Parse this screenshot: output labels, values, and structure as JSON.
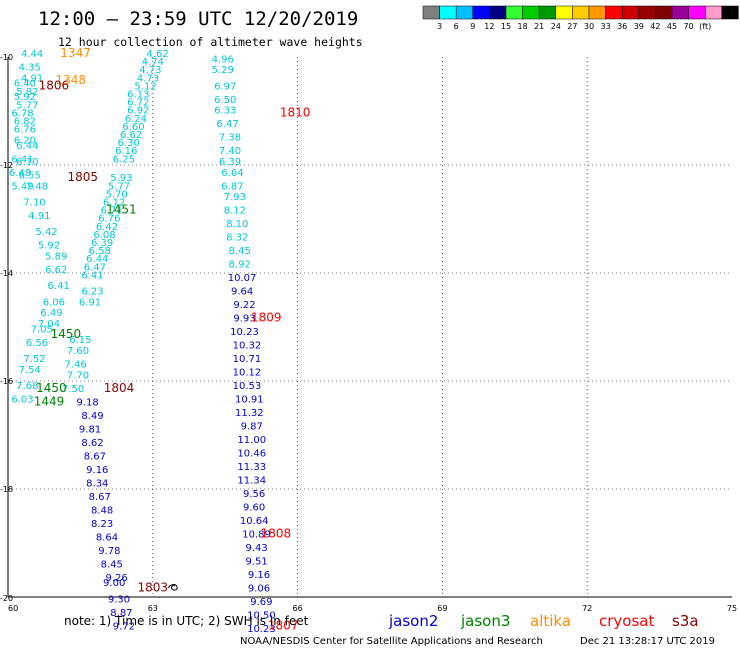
{
  "header": {
    "title": "12:00 – 23:59 UTC 12/20/2019",
    "subtitle": "12 hour collection of altimeter wave heights"
  },
  "legend": {
    "colors": [
      "#808080",
      "#00ffff",
      "#00bfff",
      "#0000ff",
      "#000080",
      "#33ff33",
      "#00cc00",
      "#009900",
      "#ffff00",
      "#ffcc00",
      "#ff9900",
      "#ff0000",
      "#cc0000",
      "#990000",
      "#7f0000",
      "#990099",
      "#ff00ff",
      "#ff99cc",
      "#000000"
    ],
    "labels": [
      "3",
      "6",
      "9",
      "12",
      "15",
      "18",
      "21",
      "24",
      "27",
      "30",
      "33",
      "36",
      "39",
      "42",
      "45",
      "70",
      "(ft)"
    ]
  },
  "satellite_colors": {
    "jason2": "#0000cd",
    "jason3": "#008000",
    "altika": "#ff8c00",
    "cryosat": "#ff0000",
    "s3a": "#8b0000",
    "cyan": "#00c8d8"
  },
  "footer": {
    "note": "note: 1) Time is in UTC; 2) SWH is in feet",
    "satellites": [
      "jason2",
      "jason3",
      "altika",
      "cryosat",
      "s3a"
    ],
    "credit": "NOAA/NESDIS Center for Satellite Applications and Research",
    "timestamp": "Dec 21 13:28:17 UTC 2019"
  },
  "chart_data": {
    "type": "scatter",
    "title": "12:00 – 23:59 UTC 12/20/2019",
    "subtitle": "12 hour collection of altimeter wave heights",
    "xlabel": "",
    "ylabel": "",
    "xlim": [
      60,
      75
    ],
    "ylim": [
      -20,
      -10
    ],
    "grid": true,
    "x_ticks": [
      "60",
      "63",
      "66",
      "69",
      "72",
      "75"
    ],
    "y_ticks": [
      "-10",
      "-12",
      "-14",
      "-16",
      "-18",
      "-20"
    ],
    "series": [
      {
        "satellite": "cyan-column",
        "color_key": "cyan",
        "points": [
          {
            "x": 63.1,
            "y": -10.0,
            "v": "4.62"
          },
          {
            "x": 63.0,
            "y": -10.15,
            "v": "4.74"
          },
          {
            "x": 62.95,
            "y": -10.3,
            "v": "4.73"
          },
          {
            "x": 62.9,
            "y": -10.45,
            "v": "4.73"
          },
          {
            "x": 62.85,
            "y": -10.6,
            "v": "5.12"
          },
          {
            "x": 62.7,
            "y": -10.75,
            "v": "6.13"
          },
          {
            "x": 62.7,
            "y": -10.9,
            "v": "6.72"
          },
          {
            "x": 62.7,
            "y": -11.05,
            "v": "6.92"
          },
          {
            "x": 62.65,
            "y": -11.2,
            "v": "6.24"
          },
          {
            "x": 62.6,
            "y": -11.35,
            "v": "6.60"
          },
          {
            "x": 62.55,
            "y": -11.5,
            "v": "6.62"
          },
          {
            "x": 62.5,
            "y": -11.65,
            "v": "6.30"
          },
          {
            "x": 62.45,
            "y": -11.8,
            "v": "6.16"
          },
          {
            "x": 62.4,
            "y": -11.95,
            "v": "6.25"
          },
          {
            "x": 62.35,
            "y": -12.3,
            "v": "5.93"
          },
          {
            "x": 62.3,
            "y": -12.45,
            "v": "5.77"
          },
          {
            "x": 62.25,
            "y": -12.6,
            "v": "5.70"
          },
          {
            "x": 62.2,
            "y": -12.75,
            "v": "6.12"
          },
          {
            "x": 62.15,
            "y": -12.9,
            "v": "6.71"
          },
          {
            "x": 62.1,
            "y": -13.05,
            "v": "6.76"
          },
          {
            "x": 62.05,
            "y": -13.2,
            "v": "6.42"
          },
          {
            "x": 62.0,
            "y": -13.35,
            "v": "6.08"
          },
          {
            "x": 61.95,
            "y": -13.5,
            "v": "6.39"
          },
          {
            "x": 61.9,
            "y": -13.65,
            "v": "6.58"
          },
          {
            "x": 61.85,
            "y": -13.8,
            "v": "6.44"
          },
          {
            "x": 61.8,
            "y": -13.95,
            "v": "6.47"
          },
          {
            "x": 61.75,
            "y": -14.1,
            "v": "6.41"
          },
          {
            "x": 61.75,
            "y": -14.4,
            "v": "6.23"
          },
          {
            "x": 61.7,
            "y": -14.6,
            "v": "6.91"
          },
          {
            "x": 61.5,
            "y": -15.3,
            "v": "6.15"
          },
          {
            "x": 61.45,
            "y": -15.5,
            "v": "7.60"
          },
          {
            "x": 61.4,
            "y": -15.75,
            "v": "7.46"
          },
          {
            "x": 61.45,
            "y": -15.95,
            "v": "7.70"
          },
          {
            "x": 61.35,
            "y": -16.2,
            "v": "7.50"
          },
          {
            "x": 60.5,
            "y": -10.0,
            "v": "4.44"
          },
          {
            "x": 60.45,
            "y": -10.25,
            "v": "4.35"
          },
          {
            "x": 60.5,
            "y": -10.45,
            "v": "4.91"
          },
          {
            "x": 60.35,
            "y": -10.55,
            "v": "6.40"
          },
          {
            "x": 60.4,
            "y": -10.7,
            "v": "5.82"
          },
          {
            "x": 60.35,
            "y": -10.8,
            "v": "5.92"
          },
          {
            "x": 60.4,
            "y": -10.95,
            "v": "5.77"
          },
          {
            "x": 60.3,
            "y": -11.1,
            "v": "6.78"
          },
          {
            "x": 60.35,
            "y": -11.25,
            "v": "6.82"
          },
          {
            "x": 60.35,
            "y": -11.4,
            "v": "6.76"
          },
          {
            "x": 60.35,
            "y": -11.6,
            "v": "6.20"
          },
          {
            "x": 60.4,
            "y": -11.7,
            "v": "6.44"
          },
          {
            "x": 60.3,
            "y": -11.95,
            "v": "6.41"
          },
          {
            "x": 60.4,
            "y": -12.0,
            "v": "6.10"
          },
          {
            "x": 60.25,
            "y": -12.2,
            "v": "6.48"
          },
          {
            "x": 60.45,
            "y": -12.25,
            "v": "6.55"
          },
          {
            "x": 60.3,
            "y": -12.45,
            "v": "5.49"
          },
          {
            "x": 60.6,
            "y": -12.45,
            "v": "7.48"
          },
          {
            "x": 60.55,
            "y": -12.75,
            "v": "7.10"
          },
          {
            "x": 60.65,
            "y": -13.0,
            "v": "4.91"
          },
          {
            "x": 60.8,
            "y": -13.3,
            "v": "5.42"
          },
          {
            "x": 60.85,
            "y": -13.55,
            "v": "5.92"
          },
          {
            "x": 61.0,
            "y": -13.75,
            "v": "5.89"
          },
          {
            "x": 61.0,
            "y": -14.0,
            "v": "6.62"
          },
          {
            "x": 61.05,
            "y": -14.3,
            "v": "6.41"
          },
          {
            "x": 60.95,
            "y": -14.6,
            "v": "6.06"
          },
          {
            "x": 60.9,
            "y": -14.8,
            "v": "6.49"
          },
          {
            "x": 60.85,
            "y": -15.0,
            "v": "7.04"
          },
          {
            "x": 60.7,
            "y": -15.1,
            "v": "7.05"
          },
          {
            "x": 60.6,
            "y": -15.35,
            "v": "6.56"
          },
          {
            "x": 60.55,
            "y": -15.65,
            "v": "7.52"
          },
          {
            "x": 60.45,
            "y": -15.85,
            "v": "7.54"
          },
          {
            "x": 60.4,
            "y": -16.15,
            "v": "7.68"
          },
          {
            "x": 60.3,
            "y": -16.4,
            "v": "6.03"
          }
        ]
      },
      {
        "satellite": "cyan-column-east",
        "color_key": "cyan",
        "points": [
          {
            "x": 64.45,
            "y": -10.1,
            "v": "4.96"
          },
          {
            "x": 64.45,
            "y": -10.3,
            "v": "5.29"
          },
          {
            "x": 64.5,
            "y": -10.6,
            "v": "6.97"
          },
          {
            "x": 64.5,
            "y": -10.85,
            "v": "6.50"
          },
          {
            "x": 64.5,
            "y": -11.05,
            "v": "6.33"
          },
          {
            "x": 64.55,
            "y": -11.3,
            "v": "6.47"
          },
          {
            "x": 64.6,
            "y": -11.55,
            "v": "7.38"
          },
          {
            "x": 64.6,
            "y": -11.8,
            "v": "7.40"
          },
          {
            "x": 64.6,
            "y": -12.0,
            "v": "6.39"
          },
          {
            "x": 64.65,
            "y": -12.2,
            "v": "6.64"
          },
          {
            "x": 64.65,
            "y": -12.45,
            "v": "6.87"
          },
          {
            "x": 64.7,
            "y": -12.65,
            "v": "7.93"
          },
          {
            "x": 64.7,
            "y": -12.9,
            "v": "8.12"
          },
          {
            "x": 64.75,
            "y": -13.15,
            "v": "8.10"
          },
          {
            "x": 64.75,
            "y": -13.4,
            "v": "8.32"
          },
          {
            "x": 64.8,
            "y": -13.65,
            "v": "8.45"
          },
          {
            "x": 64.8,
            "y": -13.9,
            "v": "8.92"
          }
        ]
      },
      {
        "satellite": "jason2",
        "color_key": "jason2",
        "points": [
          {
            "x": 64.85,
            "y": -14.15,
            "v": "10.07"
          },
          {
            "x": 64.85,
            "y": -14.4,
            "v": "9.64"
          },
          {
            "x": 64.9,
            "y": -14.65,
            "v": "9.22"
          },
          {
            "x": 64.9,
            "y": -14.9,
            "v": "9.93"
          },
          {
            "x": 64.9,
            "y": -15.15,
            "v": "10.23"
          },
          {
            "x": 64.95,
            "y": -15.4,
            "v": "10.32"
          },
          {
            "x": 64.95,
            "y": -15.65,
            "v": "10.71"
          },
          {
            "x": 64.95,
            "y": -15.9,
            "v": "10.12"
          },
          {
            "x": 64.95,
            "y": -16.15,
            "v": "10.53"
          },
          {
            "x": 65.0,
            "y": -16.4,
            "v": "10.91"
          },
          {
            "x": 65.0,
            "y": -16.65,
            "v": "11.32"
          },
          {
            "x": 65.05,
            "y": -16.9,
            "v": "9.87"
          },
          {
            "x": 65.05,
            "y": -17.15,
            "v": "11.00"
          },
          {
            "x": 65.05,
            "y": -17.4,
            "v": "10.46"
          },
          {
            "x": 65.05,
            "y": -17.65,
            "v": "11.33"
          },
          {
            "x": 65.05,
            "y": -17.9,
            "v": "11.34"
          },
          {
            "x": 65.1,
            "y": -18.15,
            "v": "9.56"
          },
          {
            "x": 65.1,
            "y": -18.4,
            "v": "9.60"
          },
          {
            "x": 65.1,
            "y": -18.65,
            "v": "10.64"
          },
          {
            "x": 65.15,
            "y": -18.9,
            "v": "10.89"
          },
          {
            "x": 65.15,
            "y": -19.15,
            "v": "9.43"
          },
          {
            "x": 65.15,
            "y": -19.4,
            "v": "9.51"
          },
          {
            "x": 65.2,
            "y": -19.65,
            "v": "9.16"
          },
          {
            "x": 65.2,
            "y": -19.9,
            "v": "9.06"
          },
          {
            "x": 65.25,
            "y": -20.15,
            "v": "9.69"
          },
          {
            "x": 65.25,
            "y": -20.4,
            "v": "10.50"
          },
          {
            "x": 65.25,
            "y": -20.65,
            "v": "10.23"
          },
          {
            "x": 61.65,
            "y": -16.45,
            "v": "9.18"
          },
          {
            "x": 61.75,
            "y": -16.7,
            "v": "8.49"
          },
          {
            "x": 61.7,
            "y": -16.95,
            "v": "9.81"
          },
          {
            "x": 61.75,
            "y": -17.2,
            "v": "8.62"
          },
          {
            "x": 61.8,
            "y": -17.45,
            "v": "8.67"
          },
          {
            "x": 61.85,
            "y": -17.7,
            "v": "9.16"
          },
          {
            "x": 61.85,
            "y": -17.95,
            "v": "8.34"
          },
          {
            "x": 61.9,
            "y": -18.2,
            "v": "8.67"
          },
          {
            "x": 61.95,
            "y": -18.45,
            "v": "8.48"
          },
          {
            "x": 61.95,
            "y": -18.7,
            "v": "8.23"
          },
          {
            "x": 62.05,
            "y": -18.95,
            "v": "8.64"
          },
          {
            "x": 62.1,
            "y": -19.2,
            "v": "9.78"
          },
          {
            "x": 62.15,
            "y": -19.45,
            "v": "8.45"
          },
          {
            "x": 62.25,
            "y": -19.7,
            "v": "9.26"
          },
          {
            "x": 62.2,
            "y": -19.8,
            "v": "9.00"
          },
          {
            "x": 62.3,
            "y": -20.1,
            "v": "9.30"
          },
          {
            "x": 62.35,
            "y": -20.35,
            "v": "8.87"
          },
          {
            "x": 62.4,
            "y": -20.6,
            "v": "9.72"
          }
        ]
      }
    ],
    "time_labels": [
      {
        "x": 61.4,
        "y": -10.0,
        "text": "1347",
        "color_key": "altika"
      },
      {
        "x": 61.3,
        "y": -10.5,
        "text": "1348",
        "color_key": "altika"
      },
      {
        "x": 60.95,
        "y": -10.6,
        "text": "1806",
        "color_key": "s3a"
      },
      {
        "x": 65.95,
        "y": -11.1,
        "text": "1810",
        "color_key": "cryosat"
      },
      {
        "x": 61.55,
        "y": -12.3,
        "text": "1805",
        "color_key": "s3a"
      },
      {
        "x": 62.35,
        "y": -12.9,
        "text": "1451",
        "color_key": "jason3"
      },
      {
        "x": 61.2,
        "y": -15.2,
        "text": "1450",
        "color_key": "jason3"
      },
      {
        "x": 65.35,
        "y": -14.9,
        "text": "1809",
        "color_key": "cryosat"
      },
      {
        "x": 62.3,
        "y": -16.2,
        "text": "1804",
        "color_key": "s3a"
      },
      {
        "x": 60.9,
        "y": -16.2,
        "text": "1450",
        "color_key": "jason3"
      },
      {
        "x": 60.85,
        "y": -16.45,
        "text": "1449",
        "color_key": "jason3"
      },
      {
        "x": 65.55,
        "y": -18.9,
        "text": "1808",
        "color_key": "cryosat"
      },
      {
        "x": 63.0,
        "y": -19.9,
        "text": "1803",
        "color_key": "s3a"
      },
      {
        "x": 65.7,
        "y": -20.6,
        "text": "1807",
        "color_key": "cryosat"
      }
    ]
  }
}
